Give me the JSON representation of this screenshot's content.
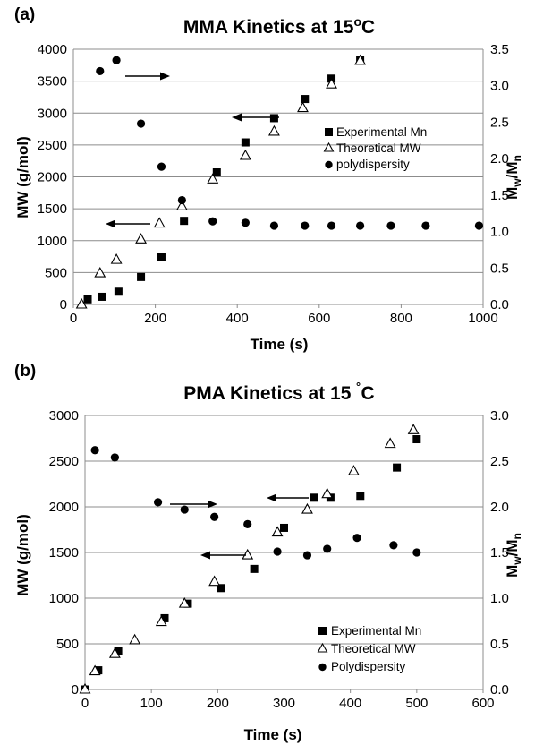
{
  "chart_data": [
    {
      "type": "scatter",
      "panel_label": "(a)",
      "title_main": "MMA Kinetics at 15",
      "title_deg": "o",
      "title_unit": "C",
      "xlabel": "Time (s)",
      "ylabel": "MW (g/mol)",
      "y2label_base_1": "M",
      "y2label_sub_1": "w",
      "y2label_slash": "/M",
      "y2label_sub_2": "n",
      "xlim": [
        0,
        1000
      ],
      "ylim": [
        0,
        4000
      ],
      "y2lim": [
        0,
        3.5
      ],
      "x_ticks": [
        "0",
        "200",
        "400",
        "600",
        "800",
        "1000"
      ],
      "y_ticks": [
        "0",
        "500",
        "1000",
        "1500",
        "2000",
        "2500",
        "3000",
        "3500",
        "4000"
      ],
      "y2_ticks": [
        "0.0",
        "0.5",
        "1.0",
        "1.5",
        "2.0",
        "2.5",
        "3.0",
        "3.5"
      ],
      "grid": "horizontal",
      "legend_position": "right-center",
      "series": [
        {
          "name": "Experimental Mn",
          "marker": "square",
          "axis": "left",
          "x": [
            35,
            70,
            110,
            165,
            215,
            270,
            350,
            420,
            490,
            565,
            630,
            700
          ],
          "y": [
            80,
            120,
            200,
            430,
            750,
            1310,
            2070,
            2540,
            2920,
            3220,
            3540,
            3830
          ]
        },
        {
          "name": "Theoretical MW",
          "marker": "triangle",
          "axis": "left",
          "x": [
            20,
            65,
            105,
            165,
            210,
            265,
            340,
            420,
            490,
            560,
            630,
            700
          ],
          "y": [
            0,
            490,
            700,
            1020,
            1270,
            1540,
            1960,
            2330,
            2710,
            3080,
            3450,
            3820
          ]
        },
        {
          "name": "polydispersity",
          "marker": "circle",
          "axis": "right",
          "x": [
            65,
            105,
            165,
            215,
            265,
            340,
            420,
            490,
            565,
            630,
            700,
            775,
            860,
            990
          ],
          "y": [
            3.2,
            3.35,
            2.48,
            1.89,
            1.43,
            1.14,
            1.12,
            1.08,
            1.08,
            1.08,
            1.08,
            1.08,
            1.08,
            1.08
          ]
        }
      ]
    },
    {
      "type": "scatter",
      "panel_label": "(b)",
      "title_main": "PMA Kinetics at 15 ",
      "title_deg": "˚",
      "title_unit": "C",
      "xlabel": "Time (s)",
      "ylabel": "MW (g/mol)",
      "y2label_base_1": "M",
      "y2label_sub_1": "w",
      "y2label_slash": "/M",
      "y2label_sub_2": "n",
      "xlim": [
        0,
        600
      ],
      "ylim": [
        0,
        3000
      ],
      "y2lim": [
        0,
        3.0
      ],
      "x_ticks": [
        "0",
        "100",
        "200",
        "300",
        "400",
        "500",
        "600"
      ],
      "y_ticks": [
        "0",
        "500",
        "1000",
        "1500",
        "2000",
        "2500",
        "3000"
      ],
      "y2_ticks": [
        "0.0",
        "0.5",
        "1.0",
        "1.5",
        "2.0",
        "2.5",
        "3.0"
      ],
      "grid": "horizontal",
      "legend_position": "bottom-right",
      "series": [
        {
          "name": "Experimental Mn",
          "marker": "square",
          "axis": "left",
          "x": [
            0,
            20,
            50,
            120,
            155,
            205,
            255,
            300,
            345,
            370,
            415,
            470,
            500
          ],
          "y": [
            0,
            210,
            420,
            780,
            940,
            1110,
            1320,
            1770,
            2100,
            2100,
            2120,
            2430,
            2740
          ]
        },
        {
          "name": "Theoretical MW",
          "marker": "triangle",
          "axis": "left",
          "x": [
            0,
            15,
            45,
            75,
            115,
            150,
            195,
            245,
            290,
            335,
            365,
            405,
            460,
            495
          ],
          "y": [
            0,
            200,
            390,
            540,
            740,
            940,
            1180,
            1470,
            1720,
            1970,
            2140,
            2390,
            2690,
            2840
          ]
        },
        {
          "name": "Polydispersity",
          "marker": "circle",
          "axis": "right",
          "x": [
            15,
            45,
            110,
            150,
            195,
            245,
            290,
            335,
            365,
            410,
            465,
            500
          ],
          "y": [
            2.62,
            2.54,
            2.05,
            1.97,
            1.89,
            1.81,
            1.51,
            1.47,
            1.54,
            1.66,
            1.58,
            1.5
          ]
        }
      ]
    }
  ]
}
